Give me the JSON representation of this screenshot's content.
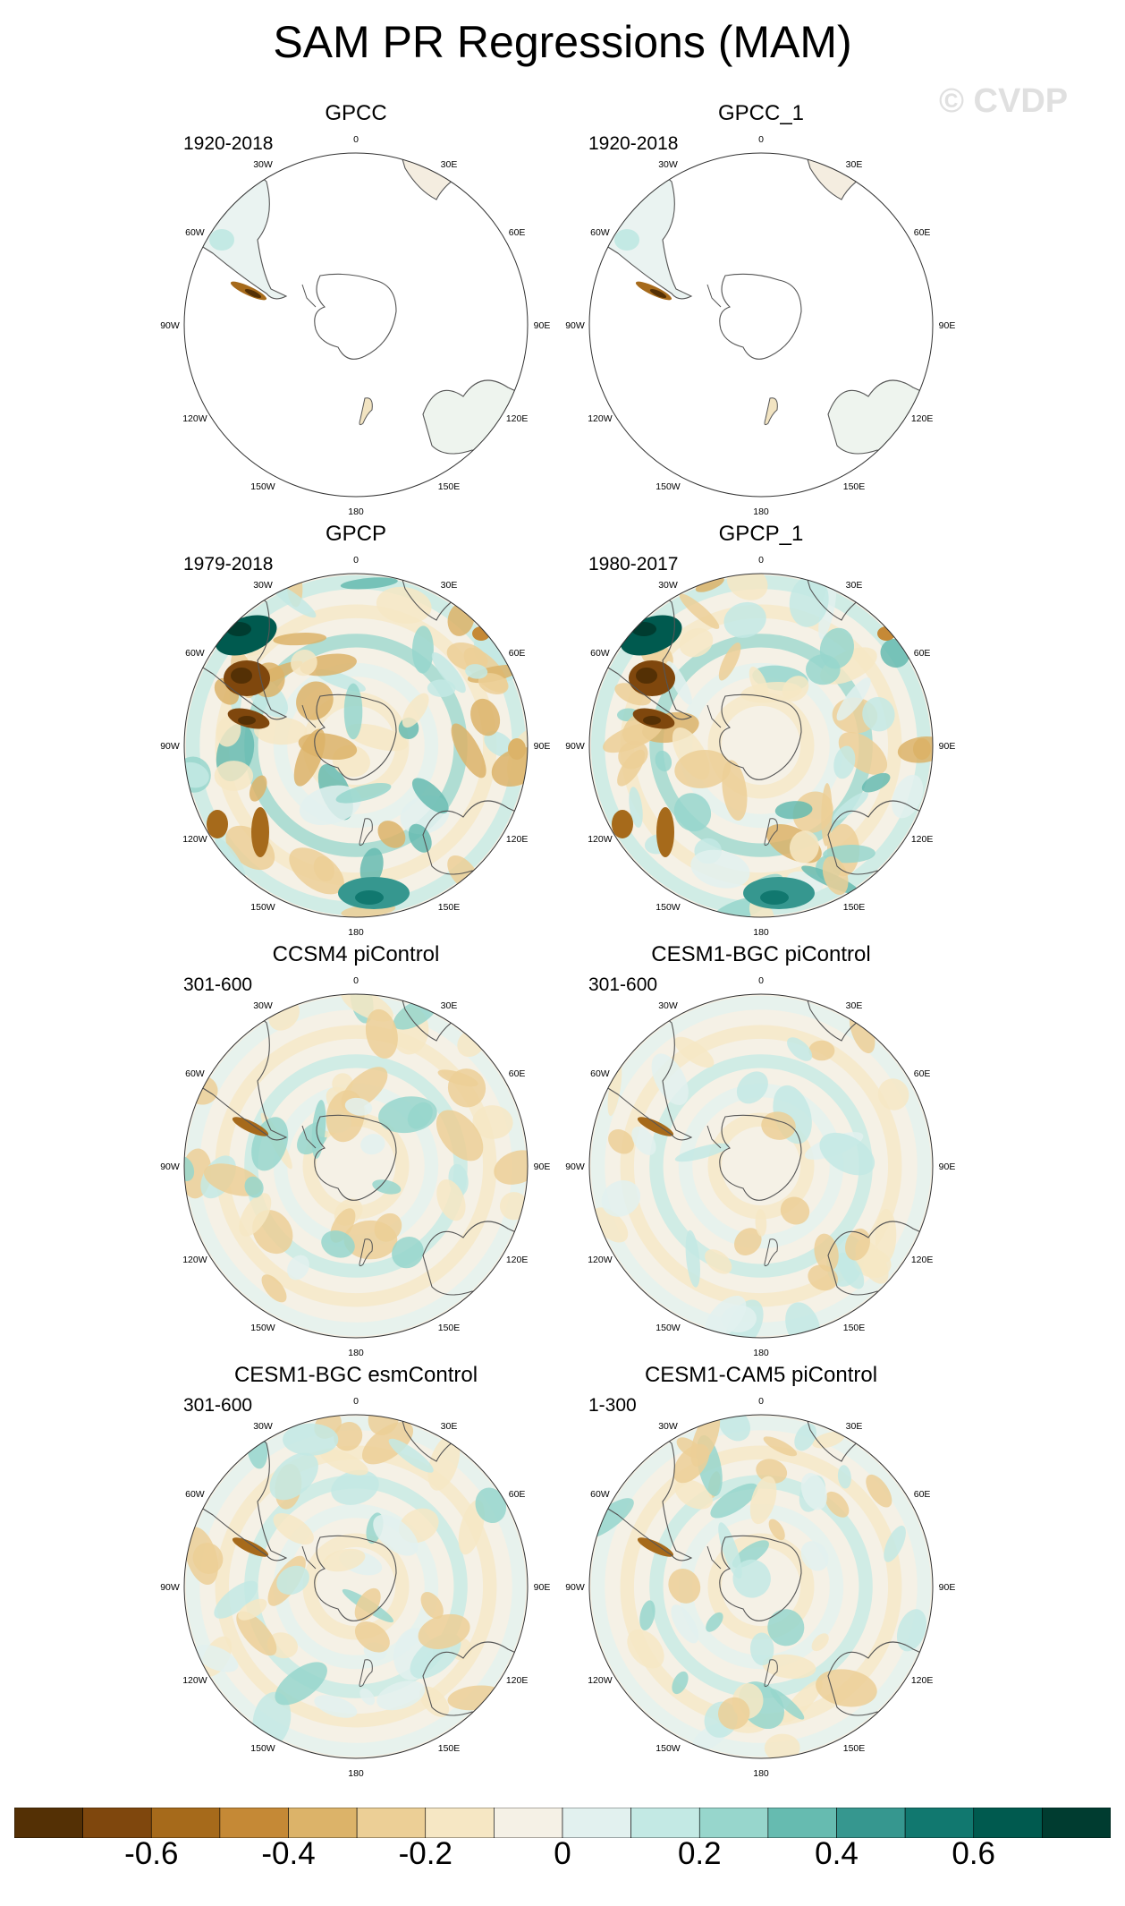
{
  "title": "SAM PR Regressions (MAM)",
  "watermark": "© CVDP",
  "panels": [
    {
      "title": "GPCC",
      "period": "1920-2018",
      "style": "sparse"
    },
    {
      "title": "GPCC_1",
      "period": "1920-2018",
      "style": "sparse"
    },
    {
      "title": "GPCP",
      "period": "1979-2018",
      "style": "strong"
    },
    {
      "title": "GPCP_1",
      "period": "1980-2017",
      "style": "strong"
    },
    {
      "title": "CCSM4 piControl",
      "period": "301-600",
      "style": "model"
    },
    {
      "title": "CESM1-BGC piControl",
      "period": "301-600",
      "style": "model-weak"
    },
    {
      "title": "CESM1-BGC esmControl",
      "period": "301-600",
      "style": "model"
    },
    {
      "title": "CESM1-CAM5 piControl",
      "period": "1-300",
      "style": "model"
    }
  ],
  "longitude_labels": [
    "0",
    "30E",
    "60E",
    "90E",
    "120E",
    "150E",
    "180",
    "150W",
    "120W",
    "90W",
    "60W",
    "30W"
  ],
  "colorbar": {
    "colors": [
      "#543005",
      "#7f470d",
      "#a66a1b",
      "#c58936",
      "#dcb369",
      "#eccf96",
      "#f6e7c4",
      "#f5f1e6",
      "#e2f1ef",
      "#c3e9e4",
      "#97d6cc",
      "#66bbb0",
      "#36978f",
      "#11786f",
      "#005a4f",
      "#003c30"
    ],
    "tick_labels": [
      "-0.6",
      "-0.4",
      "-0.2",
      "0",
      "0.2",
      "0.4",
      "0.6"
    ],
    "tick_values": [
      -0.6,
      -0.4,
      -0.2,
      0,
      0.2,
      0.4,
      0.6
    ],
    "min": -0.8,
    "max": 0.8,
    "step": 0.1
  }
}
